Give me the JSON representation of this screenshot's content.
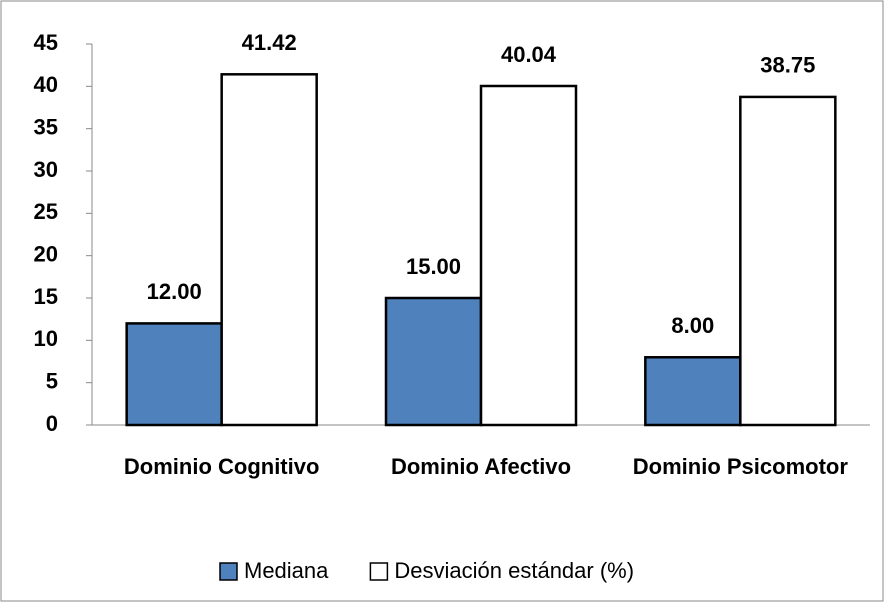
{
  "chart_data": {
    "type": "bar",
    "categories": [
      "Dominio Cognitivo",
      "Dominio Afectivo",
      "Dominio Psicomotor"
    ],
    "series": [
      {
        "name": "Mediana",
        "color": "#4f81bd",
        "values": [
          12,
          15,
          8
        ],
        "value_labels": [
          "12.00",
          "15.00",
          "8.00"
        ]
      },
      {
        "name": "Desviación estándar (%)",
        "color": "#ffffff",
        "values": [
          41.42,
          40.04,
          38.75
        ]
      }
    ],
    "ylim": [
      0,
      45
    ],
    "yticks": [
      0,
      5,
      10,
      15,
      20,
      25,
      30,
      35,
      40,
      45
    ],
    "grid": false,
    "legend": "bottom"
  }
}
